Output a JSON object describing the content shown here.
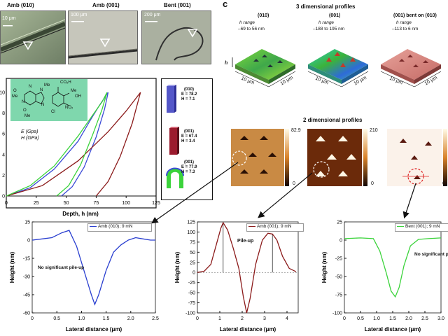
{
  "micrographs": {
    "titles": [
      "Amb (010)",
      "Amb (001)",
      "Bent (001)"
    ],
    "scale_bars": [
      "10 μm",
      "100 μm",
      "200 μm"
    ]
  },
  "panel_c": {
    "letter": "c",
    "profiles3d": {
      "title": "3 dimensional profiles",
      "h_label": "h",
      "items": [
        {
          "name": "(010)",
          "range_label": "h range",
          "range": "–69 to 56 nm",
          "axis": "10 μm"
        },
        {
          "name": "(001)",
          "range_label": "h range",
          "range": "–188 to 195 nm",
          "axis": "10 μm"
        },
        {
          "name": "(001) bent on (010)",
          "range_label": "h range",
          "range": "–113 to 6 nm",
          "axis": "10 μm"
        }
      ]
    },
    "profiles2d": {
      "title": "2 dimensional profiles",
      "scales": [
        {
          "max": "82.9",
          "min": "0"
        },
        {
          "max": "210",
          "min": "0"
        },
        {
          "max": "",
          "min": "0"
        }
      ]
    }
  },
  "molecule": {
    "co2h": "CO₂H",
    "me_top": "Me",
    "me_mid": "Me",
    "me_bot": "Me",
    "o1": "O",
    "o2": "O",
    "n1": "N",
    "n2": "N",
    "n3": "N",
    "n4": "N",
    "cl": "Cl",
    "no2": "NO₂",
    "me_oh": "Me",
    "oh": "OH"
  },
  "legend_box": {
    "E": "E (Gpa)",
    "H": "H (GPa)",
    "items": [
      {
        "face": "(010)",
        "E": "E = 78.2",
        "H": "H = 7.1"
      },
      {
        "face": "(001)",
        "E": "E = 67.4",
        "H": "H = 3.4"
      },
      {
        "face": "(001)",
        "E": "E = 77.9",
        "H": "H = 7.3"
      }
    ]
  },
  "chart_data": [
    {
      "type": "line",
      "title": "",
      "xlabel": "Depth, h (nm)",
      "ylabel": "",
      "xlim": [
        0,
        125
      ],
      "ylim": [
        0,
        10
      ],
      "xticks": [
        "0",
        "25",
        "50",
        "75",
        "100",
        "125"
      ],
      "yticks": [
        "0",
        "2",
        "4",
        "6",
        "8",
        "10"
      ],
      "series": [
        {
          "name": "(010) loading",
          "color": "#3b4bd6",
          "x": [
            0,
            20,
            40,
            60,
            70,
            78,
            85
          ],
          "y": [
            0,
            0.8,
            2.6,
            5.3,
            7.3,
            8.8,
            10
          ]
        },
        {
          "name": "(010) unloading",
          "color": "#3b4bd6",
          "x": [
            46,
            55,
            65,
            75,
            82,
            85
          ],
          "y": [
            0,
            0.9,
            2.8,
            5.7,
            8.4,
            10
          ]
        },
        {
          "name": "(001) loading",
          "color": "#8b1a1a",
          "x": [
            0,
            30,
            60,
            85,
            100,
            112
          ],
          "y": [
            0,
            1.0,
            3.4,
            6.2,
            8.2,
            10
          ]
        },
        {
          "name": "(001) unloading",
          "color": "#8b1a1a",
          "x": [
            75,
            85,
            95,
            105,
            112
          ],
          "y": [
            0,
            1.4,
            3.8,
            7.0,
            10
          ]
        },
        {
          "name": "bent (001) loading",
          "color": "#3bd33b",
          "x": [
            0,
            20,
            40,
            60,
            72,
            80,
            84
          ],
          "y": [
            0,
            1.0,
            2.9,
            5.8,
            7.8,
            9.1,
            10
          ]
        },
        {
          "name": "bent (001) unloading",
          "color": "#3bd33b",
          "x": [
            42,
            52,
            62,
            72,
            80,
            84
          ],
          "y": [
            0,
            1.0,
            3.0,
            5.9,
            8.4,
            10
          ]
        }
      ]
    },
    {
      "type": "line",
      "legend": "Amb (010); 9 mN",
      "annotation": "No significant pile-up",
      "xlabel": "Lateral distance (μm)",
      "ylabel": "Height (nm)",
      "xlim": [
        0,
        2.5
      ],
      "ylim": [
        -60,
        15
      ],
      "xticks": [
        "0",
        "0.5",
        "1.0",
        "1.5",
        "2.0",
        "2.5"
      ],
      "yticks": [
        "15",
        "0",
        "-15",
        "-30",
        "-45",
        "-60"
      ],
      "color": "#2a3fd0",
      "x": [
        0,
        0.2,
        0.4,
        0.6,
        0.75,
        0.9,
        1.05,
        1.2,
        1.27,
        1.35,
        1.5,
        1.65,
        1.8,
        1.95,
        2.1,
        2.25,
        2.4,
        2.5
      ],
      "y": [
        0,
        1,
        2,
        6,
        8,
        -5,
        -25,
        -45,
        -53,
        -45,
        -25,
        -10,
        -4,
        0,
        2,
        1,
        0,
        0
      ]
    },
    {
      "type": "line",
      "legend": "Amb (001); 9 mN",
      "annotation": "Pile-up",
      "xlabel": "Lateral distance (μm)",
      "ylabel": "Height (nm)",
      "xlim": [
        0,
        4.5
      ],
      "ylim": [
        -100,
        125
      ],
      "xticks": [
        "0",
        "1",
        "2",
        "3",
        "4"
      ],
      "yticks": [
        "125",
        "100",
        "75",
        "50",
        "25",
        "0",
        "-25",
        "-50",
        "-75",
        "-100"
      ],
      "color": "#8b1a1a",
      "x": [
        0,
        0.3,
        0.6,
        0.85,
        1.05,
        1.15,
        1.35,
        1.6,
        1.85,
        2.05,
        2.2,
        2.35,
        2.6,
        2.9,
        3.15,
        3.35,
        3.55,
        3.8,
        4.1,
        4.4
      ],
      "y": [
        0,
        3,
        20,
        70,
        110,
        123,
        105,
        60,
        10,
        -60,
        -100,
        -65,
        20,
        80,
        97,
        95,
        80,
        40,
        10,
        2
      ]
    },
    {
      "type": "line",
      "legend": "Bent (001); 9 mN",
      "annotation": "No significant pile-up",
      "xlabel": "Lateral distance (μm)",
      "ylabel": "Height (nm)",
      "xlim": [
        0,
        3.0
      ],
      "ylim": [
        -100,
        25
      ],
      "xticks": [
        "0",
        "0.5",
        "1.0",
        "1.5",
        "2.0",
        "2.5",
        "3.0"
      ],
      "yticks": [
        "25",
        "0",
        "-25",
        "-50",
        "-75",
        "-100"
      ],
      "color": "#3bd33b",
      "x": [
        0,
        0.5,
        0.9,
        1.1,
        1.3,
        1.45,
        1.58,
        1.7,
        1.85,
        2.05,
        2.3,
        2.6,
        3.0
      ],
      "y": [
        2,
        3,
        2,
        -15,
        -45,
        -70,
        -78,
        -65,
        -35,
        -8,
        1,
        2,
        3
      ]
    }
  ]
}
